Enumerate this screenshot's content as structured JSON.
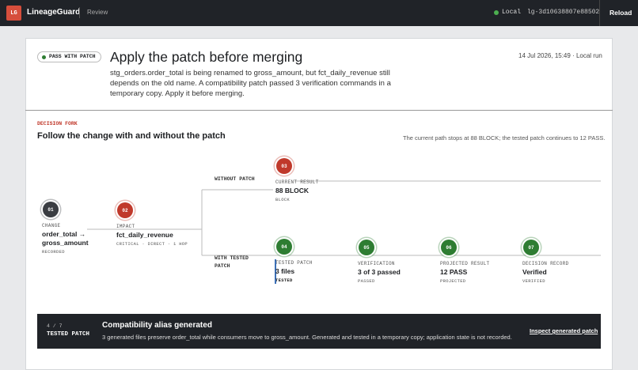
{
  "header": {
    "logo": "LG",
    "app_name": "LineageGuard",
    "section": "Review",
    "environment": "Local",
    "run_id": "lg-3d10638807e88502",
    "reload": "Reload"
  },
  "summary": {
    "status": "PASS WITH PATCH",
    "title": "Apply the patch before merging",
    "description": "stg_orders.order_total is being renamed to gross_amount, but fct_daily_revenue still depends on the old name. A compatibility patch passed 3 verification commands in a temporary copy. Apply it before merging.",
    "timestamp": "14 Jul 2026, 15:49",
    "run_mode": "Local run"
  },
  "fork": {
    "label": "DECISION FORK",
    "title": "Follow the change with and without the patch",
    "note": "The current path stops at 88 BLOCK; the tested patch continues to 12 PASS.",
    "branches": [
      "WITHOUT PATCH",
      "WITH TESTED PATCH"
    ],
    "nodes": [
      {
        "number": "01",
        "kicker": "CHANGE",
        "title": "order_total → gross_amount",
        "detail": "RECORDED"
      },
      {
        "number": "02",
        "kicker": "IMPACT",
        "title": "fct_daily_revenue",
        "detail": "CRITICAL · DIRECT · 1 HOP"
      },
      {
        "number": "03",
        "kicker": "CURRENT RESULT",
        "title": "88 BLOCK",
        "detail": "BLOCK"
      },
      {
        "number": "04",
        "kicker": "TESTED PATCH",
        "title": "3 files",
        "detail": "TESTED"
      },
      {
        "number": "05",
        "kicker": "VERIFICATION",
        "title": "3 of 3 passed",
        "detail": "PASSED"
      },
      {
        "number": "06",
        "kicker": "PROJECTED RESULT",
        "title": "12 PASS",
        "detail": "PROJECTED"
      },
      {
        "number": "07",
        "kicker": "DECISION RECORD",
        "title": "Verified",
        "detail": "VERIFIED"
      }
    ]
  },
  "banner": {
    "step": "4 / 7",
    "status": "TESTED PATCH",
    "title": "Compatibility alias generated",
    "description": "3 generated files preserve order_total while consumers move to gross_amount. Generated and tested in a temporary copy; application state is not recorded.",
    "action": "Inspect generated patch"
  }
}
